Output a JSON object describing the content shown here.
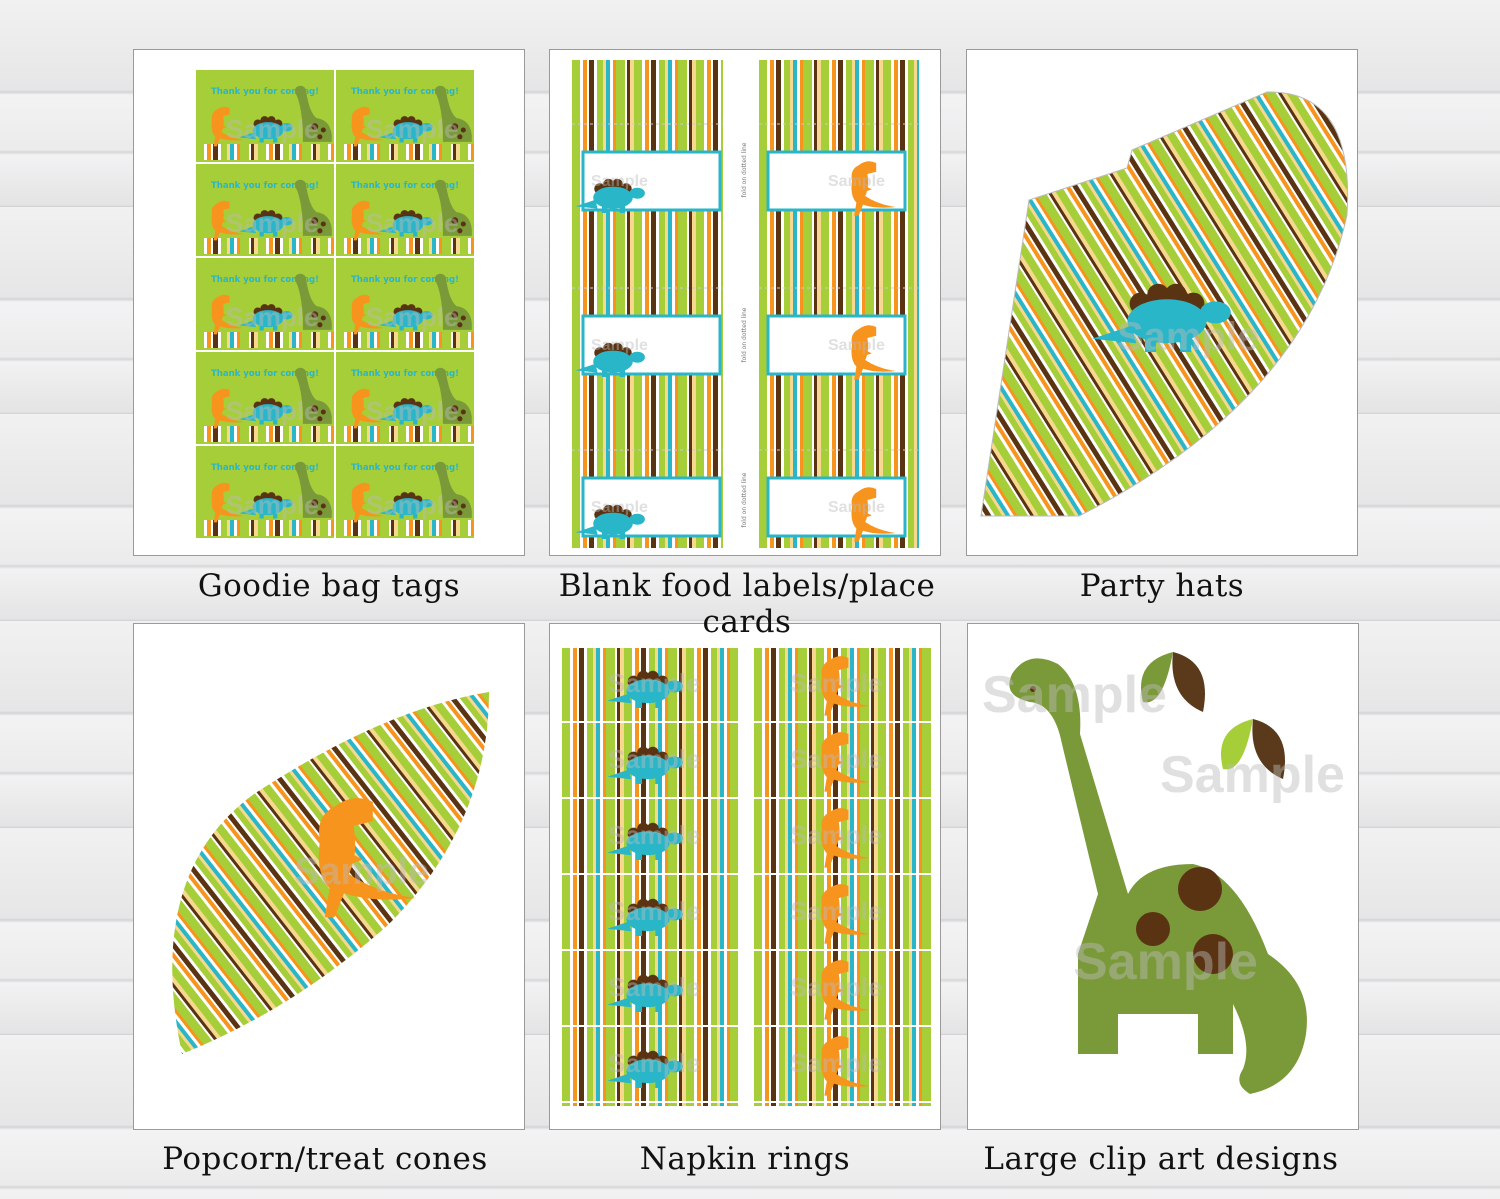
{
  "colors": {
    "green": "#a6ce39",
    "orange": "#f7941d",
    "blue": "#29b6c9",
    "brown": "#5a3312",
    "yellow": "#f6d98e",
    "olive": "#7a9a3a",
    "white": "#ffffff"
  },
  "watermark": "Sample",
  "products": [
    {
      "caption": "Goodie bag tags",
      "tag_text": "Thank you for coming!"
    },
    {
      "caption": "Blank food labels/place cards",
      "fold_text": "fold on dotted line"
    },
    {
      "caption": "Party hats"
    },
    {
      "caption": "Popcorn/treat cones"
    },
    {
      "caption": "Napkin rings"
    },
    {
      "caption": "Large clip art designs"
    }
  ]
}
